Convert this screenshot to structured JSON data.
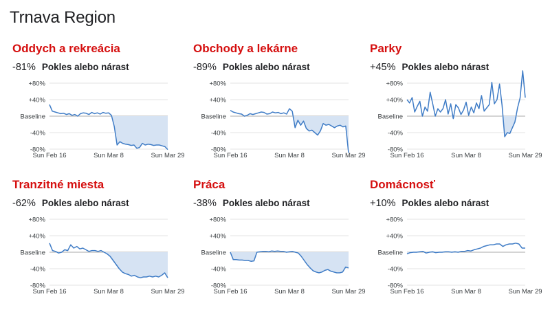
{
  "page": {
    "title": "Trnava Region",
    "change_label": "Pokles alebo nárast"
  },
  "colors": {
    "title": "#d50f0f",
    "line": "#3f7cc6",
    "fill": "#d6e3f3",
    "grid": "#e3e3e3",
    "baseline": "#a8a8a8"
  },
  "chart_data": [
    {
      "type": "line",
      "title": "Oddych a rekreácia",
      "change": "-81%",
      "x_ticks": [
        "Sun Feb 16",
        "Sun Mar 8",
        "Sun Mar 29"
      ],
      "y_ticks": [
        "+80%",
        "+40%",
        "Baseline",
        "-40%",
        "-80%"
      ],
      "ylim": [
        -80,
        80
      ],
      "x_range": [
        "Feb 15",
        "Mar 29"
      ],
      "grid": true,
      "fill_below_baseline": true,
      "values": [
        28,
        12,
        10,
        8,
        6,
        7,
        4,
        6,
        2,
        4,
        0,
        6,
        8,
        7,
        4,
        9,
        6,
        8,
        5,
        9,
        7,
        8,
        2,
        -25,
        -70,
        -62,
        -66,
        -68,
        -69,
        -71,
        -70,
        -78,
        -76,
        -66,
        -70,
        -68,
        -69,
        -71,
        -70,
        -70,
        -72,
        -74,
        -81
      ]
    },
    {
      "type": "line",
      "title": "Obchody a lekárne",
      "change": "-89%",
      "x_ticks": [
        "Sun Feb 16",
        "Sun Mar 8",
        "Sun Mar 29"
      ],
      "y_ticks": [
        "+80%",
        "+40%",
        "Baseline",
        "-40%",
        "-80%"
      ],
      "ylim": [
        -80,
        80
      ],
      "x_range": [
        "Feb 15",
        "Mar 29"
      ],
      "grid": true,
      "fill_below_baseline": true,
      "values": [
        14,
        10,
        8,
        6,
        5,
        0,
        2,
        6,
        4,
        6,
        8,
        10,
        9,
        5,
        6,
        10,
        8,
        9,
        6,
        8,
        5,
        18,
        12,
        -28,
        -10,
        -22,
        -12,
        -30,
        -36,
        -34,
        -40,
        -46,
        -36,
        -18,
        -22,
        -20,
        -24,
        -28,
        -24,
        -22,
        -26,
        -24,
        -89
      ]
    },
    {
      "type": "line",
      "title": "Parky",
      "change": "+45%",
      "x_ticks": [
        "Sun Feb 16",
        "Sun Mar 8",
        "Sun Mar 29"
      ],
      "y_ticks": [
        "+80%",
        "+40%",
        "Baseline",
        "-40%",
        "-80%"
      ],
      "ylim": [
        -80,
        80
      ],
      "x_range": [
        "Feb 15",
        "Mar 29"
      ],
      "grid": true,
      "fill_below_baseline": true,
      "values": [
        40,
        32,
        45,
        10,
        24,
        36,
        0,
        22,
        12,
        58,
        30,
        0,
        18,
        10,
        18,
        40,
        5,
        30,
        -6,
        28,
        20,
        4,
        15,
        34,
        2,
        22,
        8,
        32,
        18,
        50,
        12,
        20,
        28,
        82,
        30,
        40,
        78,
        26,
        -50,
        -40,
        -42,
        -28,
        -14,
        20,
        44,
        110,
        45
      ]
    },
    {
      "type": "line",
      "title": "Tranzitné miesta",
      "change": "-62%",
      "x_ticks": [
        "Sun Feb 16",
        "Sun Mar 8",
        "Sun Mar 29"
      ],
      "y_ticks": [
        "+80%",
        "+40%",
        "Baseline",
        "-40%",
        "-80%"
      ],
      "ylim": [
        -80,
        80
      ],
      "x_range": [
        "Feb 15",
        "Mar 29"
      ],
      "grid": true,
      "fill_below_baseline": true,
      "values": [
        22,
        4,
        2,
        -2,
        0,
        6,
        4,
        18,
        10,
        14,
        8,
        10,
        6,
        2,
        4,
        4,
        2,
        4,
        0,
        -4,
        -10,
        -20,
        -30,
        -40,
        -48,
        -52,
        -54,
        -58,
        -56,
        -60,
        -62,
        -60,
        -60,
        -58,
        -60,
        -58,
        -60,
        -56,
        -50,
        -62
      ]
    },
    {
      "type": "line",
      "title": "Práca",
      "change": "-38%",
      "x_ticks": [
        "Sun Feb 16",
        "Sun Mar 8",
        "Sun Mar 29"
      ],
      "y_ticks": [
        "+80%",
        "+40%",
        "Baseline",
        "-40%",
        "-80%"
      ],
      "ylim": [
        -80,
        80
      ],
      "x_range": [
        "Feb 15",
        "Mar 29"
      ],
      "grid": true,
      "fill_below_baseline": true,
      "values": [
        0,
        -18,
        -18,
        -19,
        -19,
        -20,
        -20,
        -22,
        -21,
        0,
        1,
        2,
        2,
        1,
        3,
        2,
        3,
        2,
        2,
        0,
        1,
        2,
        0,
        -2,
        -10,
        -20,
        -30,
        -38,
        -45,
        -48,
        -50,
        -48,
        -44,
        -42,
        -46,
        -48,
        -50,
        -50,
        -48,
        -36,
        -38
      ]
    },
    {
      "type": "line",
      "title": "Domácnosť",
      "change": "+10%",
      "x_ticks": [
        "Sun Feb 16",
        "Sun Mar 8",
        "Sun Mar 29"
      ],
      "y_ticks": [
        "+80%",
        "+40%",
        "Baseline",
        "-40%",
        "-80%"
      ],
      "ylim": [
        -80,
        80
      ],
      "x_range": [
        "Feb 15",
        "Mar 29"
      ],
      "grid": true,
      "fill_below_baseline": true,
      "values": [
        -4,
        -1,
        0,
        0,
        1,
        2,
        -2,
        0,
        1,
        -1,
        0,
        0,
        1,
        1,
        0,
        1,
        0,
        2,
        2,
        4,
        3,
        6,
        8,
        10,
        14,
        16,
        18,
        18,
        20,
        20,
        14,
        18,
        20,
        20,
        22,
        20,
        10,
        10
      ]
    }
  ]
}
